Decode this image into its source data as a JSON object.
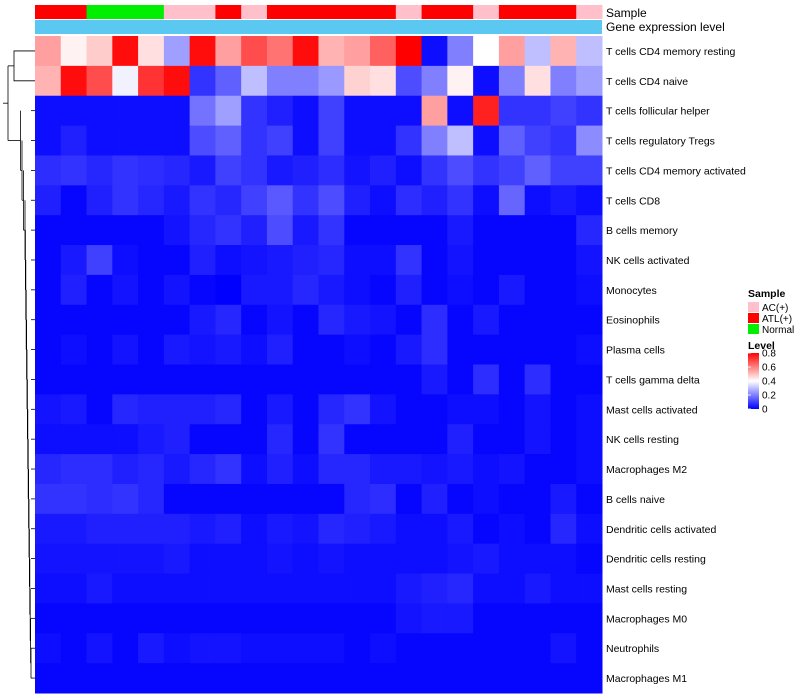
{
  "chart_data": {
    "type": "heatmap",
    "title": "",
    "annotation_tracks": [
      {
        "name": "Sample",
        "label": "Sample"
      },
      {
        "name": "Gene expression level",
        "label": "Gene expression level"
      }
    ],
    "sample_groups": [
      "ATL(+)",
      "ATL(+)",
      "Normal",
      "Normal",
      "Normal",
      "AC(+)",
      "AC(+)",
      "ATL(+)",
      "AC(+)",
      "ATL(+)",
      "ATL(+)",
      "ATL(+)",
      "ATL(+)",
      "ATL(+)",
      "AC(+)",
      "ATL(+)",
      "ATL(+)",
      "AC(+)",
      "ATL(+)",
      "ATL(+)",
      "ATL(+)",
      "AC(+)"
    ],
    "gene_expression_track_color": "#5ac8f0",
    "rows": [
      "T cells CD4 memory resting",
      "T cells CD4 naive",
      "T cells follicular helper",
      "T cells regulatory  Tregs",
      "T cells CD4 memory activated",
      "T cells CD8",
      "B cells memory",
      "NK cells activated",
      "Monocytes",
      "Eosinophils",
      "Plasma cells",
      "T cells gamma delta",
      "Mast cells activated",
      "NK cells resting",
      "Macrophages M2",
      "B cells naive",
      "Dendritic cells activated",
      "Dendritic cells resting",
      "Mast cells resting",
      "Macrophages M0",
      "Neutrophils",
      "Macrophages M1"
    ],
    "values": [
      [
        0.55,
        0.42,
        0.48,
        0.78,
        0.45,
        0.25,
        0.78,
        0.55,
        0.68,
        0.62,
        0.78,
        0.52,
        0.55,
        0.65,
        0.8,
        0.02,
        0.2,
        0.4,
        0.55,
        0.3,
        0.52,
        0.3
      ],
      [
        0.52,
        0.78,
        0.68,
        0.38,
        0.72,
        0.78,
        0.08,
        0.15,
        0.3,
        0.2,
        0.2,
        0.24,
        0.47,
        0.45,
        0.12,
        0.2,
        0.42,
        0.02,
        0.2,
        0.45,
        0.2,
        0.25
      ],
      [
        0.02,
        0.02,
        0.02,
        0.02,
        0.02,
        0.02,
        0.18,
        0.25,
        0.08,
        0.05,
        0.02,
        0.1,
        0.02,
        0.02,
        0.02,
        0.55,
        0.02,
        0.75,
        0.08,
        0.08,
        0.1,
        0.08
      ],
      [
        0.02,
        0.05,
        0.02,
        0.02,
        0.02,
        0.02,
        0.12,
        0.15,
        0.08,
        0.1,
        0.02,
        0.1,
        0.02,
        0.02,
        0.08,
        0.2,
        0.3,
        0.02,
        0.15,
        0.1,
        0.08,
        0.22
      ],
      [
        0.07,
        0.08,
        0.06,
        0.08,
        0.07,
        0.06,
        0.04,
        0.1,
        0.08,
        0.04,
        0.05,
        0.07,
        0.03,
        0.05,
        0.02,
        0.08,
        0.12,
        0.08,
        0.1,
        0.15,
        0.1,
        0.1
      ],
      [
        0.05,
        0.01,
        0.05,
        0.08,
        0.06,
        0.04,
        0.08,
        0.06,
        0.1,
        0.14,
        0.08,
        0.12,
        0.05,
        0.02,
        0.07,
        0.05,
        0.08,
        0.02,
        0.16,
        0.02,
        0.04,
        0.02
      ],
      [
        0.01,
        0.01,
        0.01,
        0.01,
        0.01,
        0.03,
        0.06,
        0.08,
        0.05,
        0.12,
        0.04,
        0.08,
        0.01,
        0.01,
        0.01,
        0.01,
        0.04,
        0.01,
        0.01,
        0.01,
        0.01,
        0.06
      ],
      [
        0.01,
        0.04,
        0.1,
        0.02,
        0.01,
        0.01,
        0.05,
        0.02,
        0.03,
        0.04,
        0.05,
        0.06,
        0.02,
        0.02,
        0.08,
        0.01,
        0.03,
        0.01,
        0.01,
        0.01,
        0.01,
        0.03
      ],
      [
        0.01,
        0.05,
        0.01,
        0.03,
        0.01,
        0.03,
        0.01,
        0.0,
        0.04,
        0.04,
        0.06,
        0.04,
        0.02,
        0.01,
        0.05,
        0.01,
        0.02,
        0.01,
        0.04,
        0.01,
        0.01,
        0.02
      ],
      [
        0.01,
        0.01,
        0.01,
        0.01,
        0.01,
        0.01,
        0.04,
        0.06,
        0.01,
        0.03,
        0.01,
        0.06,
        0.04,
        0.03,
        0.01,
        0.07,
        0.01,
        0.04,
        0.01,
        0.01,
        0.01,
        0.01
      ],
      [
        0.01,
        0.02,
        0.01,
        0.03,
        0.01,
        0.04,
        0.03,
        0.04,
        0.02,
        0.05,
        0.01,
        0.01,
        0.02,
        0.01,
        0.04,
        0.07,
        0.01,
        0.01,
        0.01,
        0.01,
        0.01,
        0.02
      ],
      [
        0.01,
        0.01,
        0.01,
        0.01,
        0.01,
        0.01,
        0.01,
        0.01,
        0.01,
        0.01,
        0.01,
        0.01,
        0.01,
        0.01,
        0.01,
        0.04,
        0.01,
        0.07,
        0.01,
        0.07,
        0.01,
        0.01
      ],
      [
        0.03,
        0.04,
        0.01,
        0.06,
        0.05,
        0.05,
        0.05,
        0.06,
        0.01,
        0.04,
        0.01,
        0.06,
        0.08,
        0.03,
        0.01,
        0.01,
        0.02,
        0.02,
        0.01,
        0.03,
        0.01,
        0.02
      ],
      [
        0.02,
        0.02,
        0.02,
        0.02,
        0.04,
        0.05,
        0.01,
        0.01,
        0.01,
        0.06,
        0.01,
        0.08,
        0.01,
        0.01,
        0.01,
        0.01,
        0.05,
        0.01,
        0.01,
        0.03,
        0.01,
        0.02
      ],
      [
        0.06,
        0.07,
        0.07,
        0.05,
        0.06,
        0.04,
        0.06,
        0.08,
        0.02,
        0.05,
        0.02,
        0.06,
        0.06,
        0.04,
        0.04,
        0.03,
        0.04,
        0.02,
        0.03,
        0.01,
        0.01,
        0.02
      ],
      [
        0.08,
        0.08,
        0.07,
        0.08,
        0.06,
        0.01,
        0.01,
        0.01,
        0.01,
        0.01,
        0.01,
        0.01,
        0.06,
        0.07,
        0.01,
        0.05,
        0.01,
        0.02,
        0.01,
        0.01,
        0.04,
        0.01
      ],
      [
        0.04,
        0.04,
        0.05,
        0.05,
        0.05,
        0.05,
        0.04,
        0.05,
        0.02,
        0.04,
        0.03,
        0.06,
        0.05,
        0.04,
        0.02,
        0.02,
        0.04,
        0.01,
        0.02,
        0.01,
        0.06,
        0.02
      ],
      [
        0.03,
        0.03,
        0.03,
        0.03,
        0.03,
        0.04,
        0.02,
        0.02,
        0.02,
        0.03,
        0.02,
        0.03,
        0.02,
        0.02,
        0.02,
        0.02,
        0.03,
        0.04,
        0.02,
        0.02,
        0.02,
        0.01
      ],
      [
        0.02,
        0.02,
        0.04,
        0.02,
        0.02,
        0.02,
        0.02,
        0.02,
        0.02,
        0.02,
        0.02,
        0.02,
        0.02,
        0.02,
        0.04,
        0.05,
        0.06,
        0.02,
        0.02,
        0.04,
        0.02,
        0.02
      ],
      [
        0.01,
        0.01,
        0.01,
        0.01,
        0.01,
        0.01,
        0.01,
        0.01,
        0.01,
        0.01,
        0.01,
        0.01,
        0.01,
        0.01,
        0.03,
        0.04,
        0.04,
        0.01,
        0.01,
        0.01,
        0.01,
        0.01
      ],
      [
        0.02,
        0.01,
        0.03,
        0.01,
        0.04,
        0.02,
        0.03,
        0.03,
        0.02,
        0.02,
        0.02,
        0.02,
        0.01,
        0.02,
        0.01,
        0.01,
        0.01,
        0.01,
        0.01,
        0.01,
        0.03,
        0.01
      ],
      [
        0.01,
        0.01,
        0.01,
        0.01,
        0.01,
        0.01,
        0.01,
        0.01,
        0.01,
        0.01,
        0.01,
        0.01,
        0.01,
        0.01,
        0.01,
        0.01,
        0.01,
        0.01,
        0.01,
        0.01,
        0.01,
        0.01
      ]
    ],
    "color_scale": {
      "min": 0,
      "max": 0.8,
      "low_color": "#0000ff",
      "mid_color": "#ffffff",
      "high_color": "#ff0000",
      "mid_value": 0.4
    },
    "sample_legend": {
      "title": "Sample",
      "items": [
        {
          "label": "AC(+)",
          "color": "#ffc0cb"
        },
        {
          "label": "ATL(+)",
          "color": "#ff0000"
        },
        {
          "label": "Normal",
          "color": "#00ee00"
        }
      ]
    },
    "level_legend": {
      "title": "Level",
      "ticks": [
        "0.8",
        "0.6",
        "0.4",
        "0.2",
        "0"
      ],
      "tick_values": [
        0.8,
        0.6,
        0.4,
        0.2,
        0
      ]
    },
    "row_dendrogram": true
  }
}
